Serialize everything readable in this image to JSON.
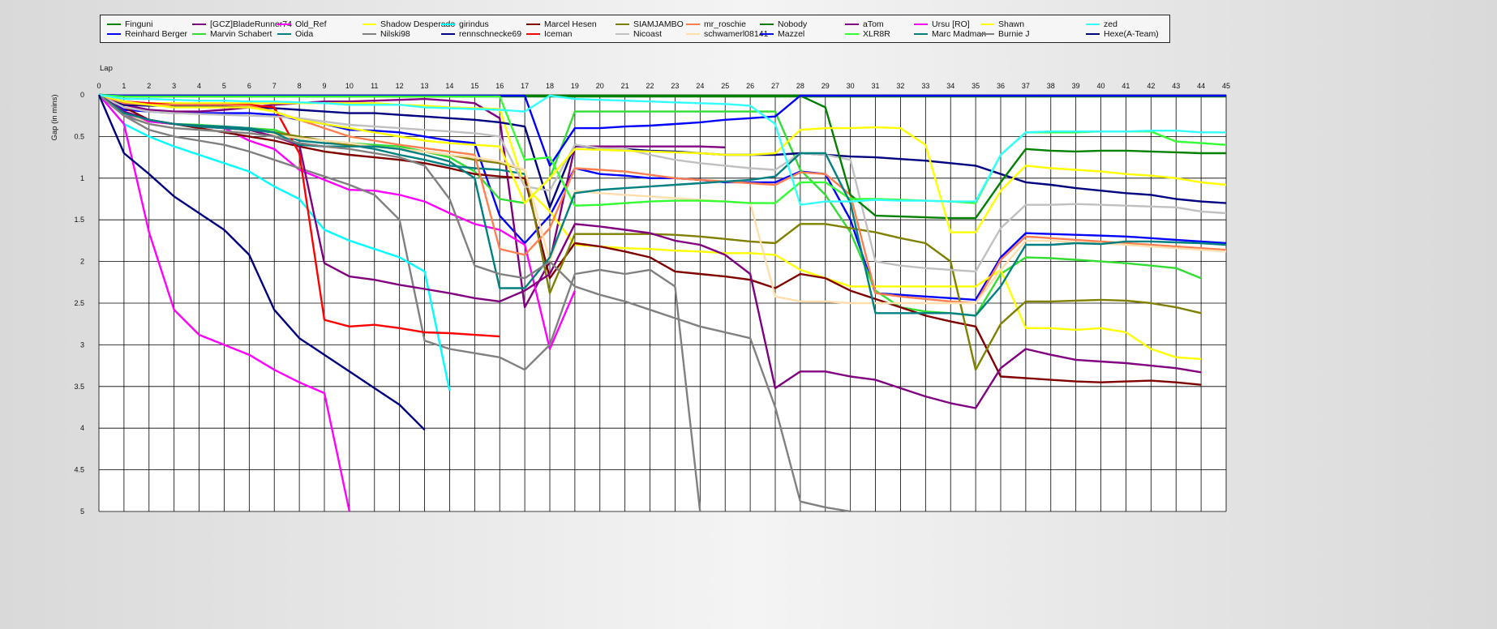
{
  "chart_data": {
    "type": "line",
    "xlabel": "Lap",
    "ylabel": "Gap (in mins)",
    "xlim": [
      0,
      45
    ],
    "ylim": [
      0,
      5
    ],
    "x_ticks": [
      "0",
      "1",
      "2",
      "3",
      "4",
      "5",
      "6",
      "7",
      "8",
      "9",
      "10",
      "11",
      "12",
      "13",
      "14",
      "15",
      "16",
      "17",
      "18",
      "19",
      "20",
      "21",
      "22",
      "23",
      "24",
      "25",
      "26",
      "27",
      "28",
      "29",
      "30",
      "31",
      "32",
      "33",
      "34",
      "35",
      "36",
      "37",
      "38",
      "39",
      "40",
      "41",
      "42",
      "43",
      "44",
      "45"
    ],
    "y_ticks": [
      "0",
      "0.5",
      "1",
      "1.5",
      "2",
      "2.5",
      "3",
      "3.5",
      "4",
      "4.5",
      "5"
    ],
    "grid": true,
    "legend_position": "top",
    "series": [
      {
        "name": "Finguni",
        "color": "#008000",
        "values": [
          0,
          0.02,
          0.02,
          0.02,
          0.02,
          0.02,
          0.02,
          0.02,
          0.02,
          0.02,
          0.02,
          0.02,
          0.02,
          0.02,
          0.02,
          0.02,
          0.02,
          0.02,
          0.02,
          0.02,
          0.02,
          0.02,
          0.02,
          0.02,
          0.02,
          0.02,
          0.02,
          0.02,
          0.02,
          0.02,
          0.02,
          0.02,
          0.02,
          0.02,
          0.02,
          0.02,
          0.02,
          0.02,
          0.02,
          0.02,
          0.02,
          0.02,
          0.02,
          0.02,
          0.02,
          0.02
        ]
      },
      {
        "name": "Reinhard Berger",
        "color": "#0000ff",
        "values": [
          0,
          0.18,
          0.2,
          0.22,
          0.22,
          0.22,
          0.22,
          0.24,
          0.3,
          0.35,
          0.42,
          0.43,
          0.45,
          0.5,
          0.55,
          0.58,
          1.45,
          1.78,
          1.45,
          0.88,
          0.95,
          0.97,
          1.0,
          1.0,
          1.02,
          1.05,
          1.05,
          1.05,
          0.92,
          0.95,
          1.5,
          2.38,
          2.4,
          2.42,
          2.44,
          2.46,
          1.95,
          1.66,
          1.67,
          1.68,
          1.69,
          1.7,
          1.72,
          1.74,
          1.76,
          1.78
        ]
      },
      {
        "name": "[GCZ]BladeRunner74",
        "color": "#800080",
        "values": [
          0,
          0.12,
          0.18,
          0.2,
          0.2,
          0.18,
          0.15,
          0.12,
          0.1,
          0.08,
          0.08,
          0.07,
          0.06,
          0.05,
          0.07,
          0.1,
          0.28,
          2.55,
          2.0,
          0.62,
          0.62,
          0.62,
          0.62,
          0.62,
          0.62,
          0.63
        ]
      },
      {
        "name": "Marvin Schabert",
        "color": "#33dd33",
        "values": [
          0,
          0.22,
          0.32,
          0.35,
          0.36,
          0.38,
          0.4,
          0.42,
          0.52,
          0.55,
          0.58,
          0.6,
          0.62,
          0.68,
          0.75,
          0.92,
          1.25,
          1.3,
          1.0,
          0.2,
          0.2,
          0.2,
          0.2,
          0.2,
          0.2,
          0.2,
          0.2,
          0.2,
          0.9,
          1.2,
          1.65,
          2.35,
          2.55,
          2.6,
          2.62,
          2.65,
          2.15,
          1.95,
          1.96,
          1.98,
          2.0,
          2.02,
          2.05,
          2.08,
          2.2
        ]
      },
      {
        "name": "Old_Ref",
        "color": "#ff00ff",
        "values": [
          0,
          0.25,
          0.32,
          0.35,
          0.38,
          0.4,
          0.55,
          0.65,
          0.9,
          1.02,
          1.14,
          1.15,
          1.2,
          1.28,
          1.42,
          1.55,
          1.62,
          1.8,
          3.05,
          2.35
        ]
      },
      {
        "name": "Oida",
        "color": "#008080",
        "values": [
          0,
          0.2,
          0.3,
          0.35,
          0.37,
          0.38,
          0.4,
          0.45,
          0.55,
          0.58,
          0.6,
          0.65,
          0.72,
          0.78,
          0.85,
          0.88,
          0.9,
          0.95
        ]
      },
      {
        "name": "Shadow Desperado",
        "color": "#ffff00",
        "values": [
          0,
          0.1,
          0.1,
          0.1,
          0.1,
          0.1,
          0.1,
          0.1,
          0.1,
          0.1,
          0.1,
          0.1,
          0.12,
          0.13,
          0.15,
          0.16,
          0.17,
          1.1,
          1.4,
          1.8,
          1.82,
          1.84,
          1.85,
          1.87,
          1.88,
          1.9,
          1.9,
          1.92,
          2.1,
          2.2,
          2.3,
          2.3,
          2.3,
          2.3,
          2.3,
          2.3,
          2.1,
          2.8,
          2.8,
          2.82,
          2.8,
          2.85,
          3.05,
          3.15,
          3.17
        ]
      },
      {
        "name": "Nilski98",
        "color": "#808080",
        "values": [
          0,
          0.25,
          0.42,
          0.5,
          0.55,
          0.6,
          0.68,
          0.78,
          0.88,
          0.98,
          1.08,
          1.2,
          1.5,
          2.95,
          3.05,
          3.1,
          3.15,
          3.3,
          3.0,
          2.15,
          2.1,
          2.15,
          2.1,
          2.3,
          5.0
        ]
      },
      {
        "name": "girindus",
        "color": "#00ffff",
        "values": [
          0,
          0.35,
          0.5,
          0.62,
          0.72,
          0.82,
          0.92,
          1.1,
          1.25,
          1.62,
          1.75,
          1.85,
          1.95,
          2.12,
          3.55
        ]
      },
      {
        "name": "rennschnecke69",
        "color": "#000080",
        "values": [
          0,
          0.12,
          0.13,
          0.13,
          0.13,
          0.13,
          0.15,
          0.16,
          0.18,
          0.2,
          0.22,
          0.22,
          0.24,
          0.26,
          0.28,
          0.3,
          0.33,
          0.38,
          1.35,
          0.6,
          0.65,
          0.65,
          0.67,
          0.68,
          0.7,
          0.72,
          0.72,
          0.72,
          0.7,
          0.72,
          0.74,
          0.75,
          0.77,
          0.79,
          0.82,
          0.85,
          0.95,
          1.05,
          1.08,
          1.12,
          1.15,
          1.18,
          1.2,
          1.25,
          1.28,
          1.3
        ]
      },
      {
        "name": "Marcel Hesen",
        "color": "#800000",
        "values": [
          0,
          0.15,
          0.3,
          0.35,
          0.4,
          0.45,
          0.5,
          0.55,
          0.62,
          0.68,
          0.72,
          0.75,
          0.78,
          0.82,
          0.88,
          0.95,
          0.98,
          1.0,
          2.2,
          1.78,
          1.82,
          1.88,
          1.95,
          2.12,
          2.15,
          2.18,
          2.22,
          2.32,
          2.15,
          2.2,
          2.35,
          2.45,
          2.55,
          2.65,
          2.72,
          2.78,
          3.38,
          3.4,
          3.42,
          3.44,
          3.45,
          3.44,
          3.43,
          3.45,
          3.48
        ]
      },
      {
        "name": "Iceman",
        "color": "#ff0000",
        "values": [
          0,
          0.08,
          0.1,
          0.12,
          0.12,
          0.12,
          0.12,
          0.15,
          0.7,
          2.7,
          2.78,
          2.76,
          2.8,
          2.85,
          2.86,
          2.88,
          2.9
        ]
      },
      {
        "name": "SIAMJAMBO",
        "color": "#808000",
        "values": [
          0,
          0.22,
          0.3,
          0.35,
          0.38,
          0.4,
          0.42,
          0.45,
          0.5,
          0.55,
          0.6,
          0.62,
          0.65,
          0.68,
          0.72,
          0.78,
          0.82,
          0.9,
          2.38,
          1.67,
          1.67,
          1.67,
          1.67,
          1.68,
          1.7,
          1.73,
          1.76,
          1.78,
          1.55,
          1.55,
          1.6,
          1.65,
          1.72,
          1.78,
          2.0,
          3.3,
          2.75,
          2.48,
          2.48,
          2.47,
          2.46,
          2.47,
          2.5,
          2.55,
          2.62
        ]
      },
      {
        "name": "Nicoast",
        "color": "#c0c0c0",
        "values": [
          0,
          0.15,
          0.2,
          0.22,
          0.23,
          0.24,
          0.25,
          0.26,
          0.28,
          0.32,
          0.36,
          0.38,
          0.4,
          0.42,
          0.44,
          0.46,
          0.5,
          1.1,
          1.15,
          0.6,
          0.64,
          0.65,
          0.72,
          0.78,
          0.82,
          0.85,
          0.88,
          0.9,
          0.7,
          0.72,
          0.78,
          2.0,
          2.05,
          2.08,
          2.1,
          2.12,
          1.6,
          1.32,
          1.32,
          1.31,
          1.32,
          1.33,
          1.34,
          1.35,
          1.4,
          1.42
        ]
      },
      {
        "name": "mr_roschie",
        "color": "#ff7f50",
        "values": [
          0,
          0.1,
          0.12,
          0.12,
          0.12,
          0.12,
          0.13,
          0.2,
          0.3,
          0.4,
          0.5,
          0.55,
          0.6,
          0.64,
          0.68,
          0.72,
          1.85,
          1.92,
          1.6,
          0.88,
          0.9,
          0.92,
          0.96,
          1.0,
          1.02,
          1.04,
          1.06,
          1.08,
          0.93,
          0.95,
          1.2,
          2.38,
          2.42,
          2.45,
          2.48,
          2.5,
          1.98,
          1.7,
          1.72,
          1.74,
          1.76,
          1.78,
          1.8,
          1.82,
          1.84,
          1.86
        ]
      },
      {
        "name": "schwamerl08141",
        "color": "#ffdead",
        "values": [
          0,
          0.2,
          0.35,
          0.4,
          0.42,
          0.44,
          0.46,
          0.48,
          0.52,
          0.55,
          0.58,
          0.62,
          0.65,
          0.68,
          0.72,
          0.75,
          0.8,
          0.9,
          2.0,
          1.15,
          1.18,
          1.2,
          1.22,
          1.24,
          1.26,
          1.28,
          1.3,
          2.42,
          2.48,
          2.48,
          2.5,
          2.5,
          2.5,
          2.5,
          2.5,
          2.5,
          2.1,
          1.75,
          1.75,
          1.77,
          1.78,
          1.8,
          1.82,
          1.84,
          1.86,
          1.88
        ]
      },
      {
        "name": "Nobody",
        "color": "#008000",
        "values": [
          0,
          0.01,
          0.01,
          0.01,
          0.01,
          0.01,
          0.01,
          0.01,
          0.01,
          0.01,
          0.01,
          0.01,
          0.01,
          0.01,
          0.01,
          0.01,
          0.01,
          0.01,
          0.01,
          0.01,
          0.01,
          0.01,
          0.01,
          0.01,
          0.01,
          0.01,
          0.01,
          0.01,
          0.01,
          0.15,
          1.2,
          1.45,
          1.46,
          1.47,
          1.48,
          1.48,
          1.05,
          0.65,
          0.67,
          0.68,
          0.67,
          0.67,
          0.68,
          0.69,
          0.7,
          0.7
        ]
      },
      {
        "name": "Mazzel",
        "color": "#0000ff",
        "values": [
          0,
          0.01,
          0.01,
          0.01,
          0.01,
          0.01,
          0.01,
          0.01,
          0.01,
          0.01,
          0.01,
          0.01,
          0.01,
          0.01,
          0.01,
          0.01,
          0.01,
          0.01,
          0.85,
          0.4,
          0.4,
          0.38,
          0.37,
          0.35,
          0.33,
          0.3,
          0.28,
          0.26,
          0.01,
          0.01,
          0.01,
          0.01,
          0.01,
          0.01,
          0.01,
          0.01,
          0.01,
          0.01,
          0.01,
          0.01,
          0.01,
          0.01,
          0.01,
          0.01,
          0.01,
          0.01
        ]
      },
      {
        "name": "aTom",
        "color": "#800080",
        "values": [
          0,
          0.2,
          0.3,
          0.35,
          0.38,
          0.4,
          0.42,
          0.5,
          0.6,
          2.02,
          2.18,
          2.22,
          2.28,
          2.33,
          2.38,
          2.44,
          2.48,
          2.35,
          2.15,
          1.55,
          1.58,
          1.62,
          1.66,
          1.75,
          1.8,
          1.92,
          2.15,
          3.52,
          3.32,
          3.32,
          3.38,
          3.42,
          3.52,
          3.62,
          3.7,
          3.76,
          3.28,
          3.05,
          3.12,
          3.18,
          3.2,
          3.22,
          3.25,
          3.28,
          3.33
        ]
      },
      {
        "name": "XLR8R",
        "color": "#33ff33",
        "values": [
          0,
          0.02,
          0.02,
          0.02,
          0.02,
          0.02,
          0.02,
          0.02,
          0.02,
          0.02,
          0.02,
          0.02,
          0.02,
          0.02,
          0.02,
          0.02,
          0.02,
          0.78,
          0.75,
          1.33,
          1.32,
          1.3,
          1.28,
          1.27,
          1.27,
          1.28,
          1.3,
          1.3,
          1.05,
          1.05,
          1.25,
          1.25,
          1.26,
          1.27,
          1.28,
          1.3,
          0.72,
          0.45,
          0.45,
          0.45,
          0.44,
          0.44,
          0.44,
          0.56,
          0.58,
          0.6
        ]
      },
      {
        "name": "Ursu [RO]",
        "color": "#ff00ff",
        "values": [
          0,
          0.35,
          1.65,
          2.58,
          2.88,
          3.0,
          3.12,
          3.3,
          3.45,
          3.58,
          5.0
        ]
      },
      {
        "name": "Marc Madman",
        "color": "#008080",
        "values": [
          0,
          0.22,
          0.3,
          0.35,
          0.38,
          0.4,
          0.42,
          0.45,
          0.6,
          0.62,
          0.62,
          0.62,
          0.65,
          0.72,
          0.8,
          1.0,
          2.32,
          2.32,
          1.95,
          1.18,
          1.14,
          1.12,
          1.1,
          1.08,
          1.06,
          1.04,
          1.02,
          0.98,
          0.7,
          0.7,
          1.3,
          2.62,
          2.62,
          2.62,
          2.62,
          2.65,
          2.3,
          1.8,
          1.8,
          1.78,
          1.79,
          1.76,
          1.76,
          1.77,
          1.78,
          1.8
        ]
      },
      {
        "name": "Shawn",
        "color": "#ffff00",
        "values": [
          0,
          0.08,
          0.12,
          0.15,
          0.15,
          0.15,
          0.15,
          0.2,
          0.3,
          0.35,
          0.4,
          0.45,
          0.5,
          0.55,
          0.58,
          0.6,
          0.62,
          1.3,
          1.0,
          0.65,
          0.66,
          0.67,
          0.68,
          0.69,
          0.7,
          0.72,
          0.72,
          0.7,
          0.42,
          0.4,
          0.4,
          0.39,
          0.4,
          0.6,
          1.65,
          1.65,
          1.15,
          0.85,
          0.88,
          0.9,
          0.92,
          0.95,
          0.97,
          1.0,
          1.05,
          1.08
        ]
      },
      {
        "name": "Burnie J",
        "color": "#808080",
        "values": [
          0,
          0.25,
          0.35,
          0.4,
          0.42,
          0.44,
          0.46,
          0.5,
          0.58,
          0.62,
          0.65,
          0.7,
          0.75,
          0.85,
          1.25,
          2.05,
          2.15,
          2.2,
          2.0,
          2.3,
          2.4,
          2.48,
          2.58,
          2.68,
          2.78,
          2.85,
          2.92,
          3.75,
          4.88,
          4.95,
          5.0
        ]
      },
      {
        "name": "zed",
        "color": "#33ffff",
        "values": [
          0,
          0.05,
          0.05,
          0.06,
          0.07,
          0.07,
          0.08,
          0.08,
          0.09,
          0.1,
          0.12,
          0.12,
          0.12,
          0.15,
          0.16,
          0.17,
          0.18,
          0.2,
          0.01,
          0.05,
          0.06,
          0.07,
          0.08,
          0.09,
          0.1,
          0.11,
          0.13,
          0.35,
          1.32,
          1.28,
          1.28,
          1.26,
          1.27,
          1.27,
          1.28,
          1.28,
          0.72,
          0.45,
          0.44,
          0.44,
          0.44,
          0.44,
          0.43,
          0.43,
          0.45,
          0.45
        ]
      },
      {
        "name": "Hexe(A-Team)",
        "color": "#000080",
        "values": [
          0,
          0.7,
          0.95,
          1.22,
          1.42,
          1.62,
          1.92,
          2.58,
          2.92,
          3.12,
          3.32,
          3.52,
          3.72,
          4.02
        ]
      }
    ]
  }
}
